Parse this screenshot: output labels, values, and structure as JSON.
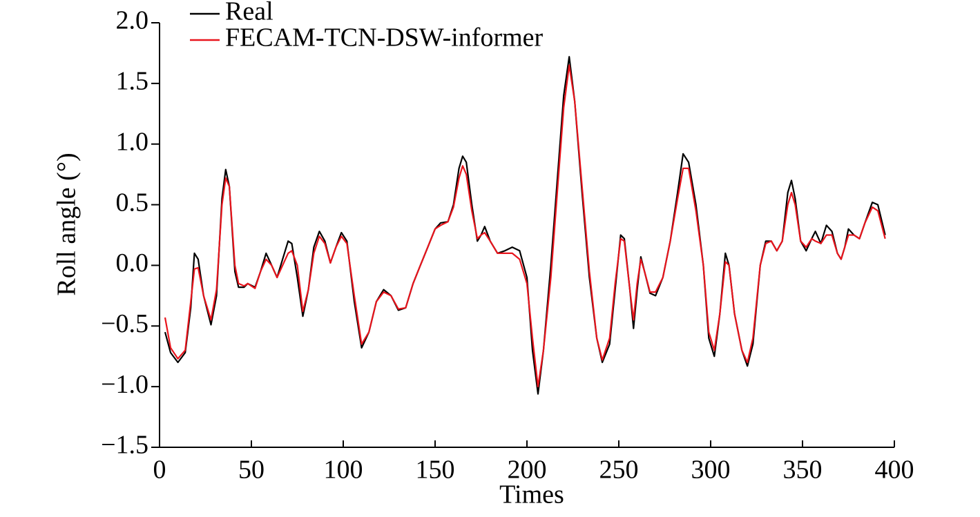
{
  "chart_data": {
    "type": "line",
    "xlabel": "Times",
    "ylabel": "Roll angle (°)",
    "x": [
      3,
      6,
      10,
      14,
      17,
      19,
      21,
      24,
      28,
      31,
      34,
      36,
      38,
      41,
      43,
      46,
      48,
      52,
      55,
      58,
      61,
      64,
      67,
      70,
      72,
      75,
      78,
      81,
      84,
      87,
      90,
      93,
      96,
      99,
      102,
      106,
      110,
      114,
      118,
      122,
      126,
      130,
      134,
      138,
      142,
      146,
      150,
      153,
      157,
      160,
      163,
      165,
      167,
      170,
      173,
      175,
      177,
      180,
      184,
      188,
      192,
      196,
      200,
      203,
      206,
      209,
      213,
      217,
      220,
      223,
      226,
      230,
      234,
      238,
      241,
      245,
      248,
      251,
      253,
      256,
      258,
      260,
      262,
      264,
      267,
      270,
      274,
      278,
      282,
      285,
      288,
      292,
      296,
      299,
      302,
      305,
      308,
      310,
      313,
      317,
      320,
      323,
      327,
      330,
      333,
      336,
      339,
      342,
      344,
      346,
      349,
      352,
      355,
      357,
      360,
      363,
      366,
      369,
      371,
      373,
      375,
      378,
      381,
      384,
      388,
      391,
      395
    ],
    "series": [
      {
        "name": "Real",
        "color": "#000000",
        "values": [
          -0.55,
          -0.72,
          -0.8,
          -0.72,
          -0.35,
          0.1,
          0.05,
          -0.25,
          -0.49,
          -0.25,
          0.55,
          0.79,
          0.65,
          -0.05,
          -0.18,
          -0.18,
          -0.15,
          -0.18,
          -0.05,
          0.1,
          0.0,
          -0.1,
          0.05,
          0.2,
          0.18,
          -0.1,
          -0.42,
          -0.2,
          0.15,
          0.28,
          0.2,
          0.02,
          0.15,
          0.27,
          0.2,
          -0.3,
          -0.68,
          -0.55,
          -0.3,
          -0.2,
          -0.25,
          -0.37,
          -0.35,
          -0.15,
          0.0,
          0.15,
          0.3,
          0.35,
          0.36,
          0.5,
          0.8,
          0.9,
          0.85,
          0.5,
          0.2,
          0.25,
          0.32,
          0.2,
          0.1,
          0.12,
          0.15,
          0.12,
          -0.1,
          -0.7,
          -1.06,
          -0.7,
          0.0,
          0.8,
          1.4,
          1.72,
          1.35,
          0.6,
          -0.1,
          -0.6,
          -0.8,
          -0.65,
          -0.2,
          0.25,
          0.22,
          -0.2,
          -0.52,
          -0.2,
          0.07,
          -0.05,
          -0.23,
          -0.25,
          -0.1,
          0.2,
          0.6,
          0.92,
          0.85,
          0.5,
          0.0,
          -0.6,
          -0.75,
          -0.4,
          0.1,
          0.0,
          -0.4,
          -0.7,
          -0.83,
          -0.65,
          0.0,
          0.2,
          0.2,
          0.12,
          0.2,
          0.6,
          0.7,
          0.55,
          0.2,
          0.12,
          0.22,
          0.28,
          0.18,
          0.33,
          0.28,
          0.1,
          0.05,
          0.15,
          0.3,
          0.25,
          0.22,
          0.35,
          0.52,
          0.5,
          0.25
        ]
      },
      {
        "name": "FECAM-TCN-DSW-informer",
        "color": "#e8141c",
        "values": [
          -0.43,
          -0.68,
          -0.77,
          -0.7,
          -0.3,
          -0.03,
          -0.02,
          -0.25,
          -0.45,
          -0.2,
          0.5,
          0.72,
          0.65,
          0.0,
          -0.15,
          -0.17,
          -0.15,
          -0.19,
          -0.05,
          0.05,
          0.0,
          -0.1,
          0.0,
          0.1,
          0.12,
          0.0,
          -0.38,
          -0.2,
          0.1,
          0.24,
          0.18,
          0.02,
          0.15,
          0.24,
          0.18,
          -0.25,
          -0.65,
          -0.55,
          -0.3,
          -0.22,
          -0.25,
          -0.36,
          -0.35,
          -0.15,
          0.0,
          0.15,
          0.3,
          0.33,
          0.36,
          0.48,
          0.72,
          0.82,
          0.75,
          0.45,
          0.22,
          0.25,
          0.27,
          0.2,
          0.1,
          0.1,
          0.1,
          0.05,
          -0.15,
          -0.6,
          -1.0,
          -0.7,
          -0.1,
          0.7,
          1.3,
          1.65,
          1.35,
          0.65,
          -0.05,
          -0.6,
          -0.78,
          -0.6,
          -0.15,
          0.22,
          0.2,
          -0.2,
          -0.45,
          -0.15,
          0.05,
          -0.05,
          -0.22,
          -0.22,
          -0.1,
          0.2,
          0.55,
          0.8,
          0.8,
          0.45,
          0.0,
          -0.55,
          -0.7,
          -0.4,
          0.03,
          0.0,
          -0.4,
          -0.7,
          -0.8,
          -0.6,
          0.0,
          0.18,
          0.2,
          0.12,
          0.2,
          0.5,
          0.6,
          0.5,
          0.2,
          0.15,
          0.22,
          0.2,
          0.18,
          0.25,
          0.25,
          0.1,
          0.05,
          0.15,
          0.25,
          0.25,
          0.22,
          0.35,
          0.48,
          0.45,
          0.22
        ]
      }
    ],
    "xlim": [
      0,
      400
    ],
    "xticks": [
      0,
      50,
      100,
      150,
      200,
      250,
      300,
      350,
      400
    ],
    "ylim": [
      -1.5,
      2.0
    ],
    "yticks": [
      {
        "value": -1.5,
        "label": "−1.5"
      },
      {
        "value": -1.0,
        "label": "−1.0"
      },
      {
        "value": -0.5,
        "label": "−0.5"
      },
      {
        "value": 0,
        "label": "0.0"
      },
      {
        "value": 0.5,
        "label": "0.5"
      },
      {
        "value": 1.0,
        "label": "1.0"
      },
      {
        "value": 1.5,
        "label": "1.5"
      },
      {
        "value": 2.0,
        "label": "2.0"
      }
    ],
    "legend": "upper left",
    "grid": false
  }
}
